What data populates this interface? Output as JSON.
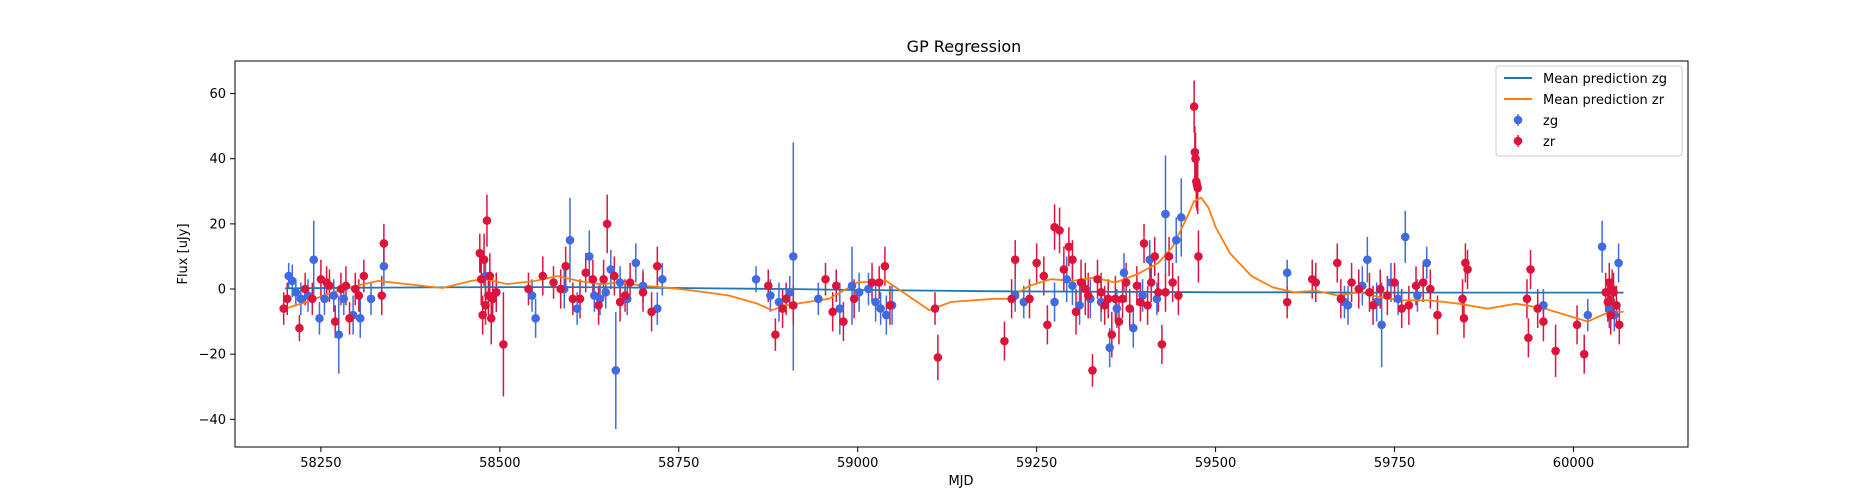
{
  "chart_data": {
    "type": "scatter",
    "title": "GP Regression",
    "xlabel": "MJD",
    "ylabel": "Flux [uJy]",
    "xlim": [
      58130,
      60160
    ],
    "ylim": [
      -48.5,
      70
    ],
    "x_ticks": [
      58250,
      58500,
      58750,
      59000,
      59250,
      59500,
      59750,
      60000
    ],
    "y_ticks": [
      -40,
      -20,
      0,
      20,
      40,
      60
    ],
    "grid": false,
    "legend_position": "top-right",
    "legend": [
      "Mean prediction zg",
      "Mean prediction zr",
      "zg",
      "zr"
    ],
    "colors": {
      "zg_line": "#1f77b4",
      "zr_line": "#ff7f0e",
      "zg_points": "#4169e1",
      "zr_points": "#dc143c"
    },
    "mean_prediction_zg": {
      "x": [
        58200,
        58300,
        58400,
        58500,
        58600,
        58700,
        58800,
        58900,
        59000,
        59100,
        59200,
        59300,
        59400,
        59500,
        59600,
        59700,
        59800,
        59900,
        60000,
        60070
      ],
      "y": [
        0.2,
        0.4,
        0.5,
        0.6,
        0.6,
        0.4,
        0.2,
        0.0,
        -0.3,
        -0.5,
        -0.7,
        -0.8,
        -0.9,
        -1.0,
        -1.0,
        -1.1,
        -1.1,
        -1.1,
        -1.1,
        -1.1
      ]
    },
    "mean_prediction_zr": {
      "x": [
        58200,
        58230,
        58260,
        58290,
        58330,
        58370,
        58420,
        58460,
        58480,
        58510,
        58550,
        58580,
        58610,
        58640,
        58670,
        58700,
        58730,
        58770,
        58820,
        58860,
        58880,
        58900,
        58930,
        58960,
        59000,
        59040,
        59070,
        59100,
        59130,
        59160,
        59190,
        59210,
        59240,
        59270,
        59300,
        59330,
        59360,
        59390,
        59420,
        59440,
        59460,
        59470,
        59480,
        59490,
        59500,
        59520,
        59550,
        59580,
        59610,
        59640,
        59670,
        59700,
        59730,
        59760,
        59800,
        59840,
        59880,
        59920,
        59960,
        59990,
        60020,
        60050,
        60070
      ],
      "y": [
        -6,
        -4,
        -1.5,
        0.5,
        2.5,
        1.5,
        0.3,
        2.5,
        3,
        1.5,
        2.5,
        4,
        2.5,
        1.5,
        2,
        1,
        0.5,
        -0.5,
        -2,
        -4.5,
        -6.5,
        -5,
        -4,
        -3,
        2,
        2.5,
        -2,
        -6.5,
        -4,
        -3.5,
        -3,
        -3,
        1,
        3,
        2.5,
        3.5,
        2,
        4.5,
        8,
        13,
        22,
        27,
        28,
        25,
        19,
        11,
        4,
        0.5,
        -1,
        -0.5,
        -2,
        -1,
        -2.5,
        -3.5,
        -3.5,
        -4.5,
        -6,
        -4.5,
        -6,
        -8,
        -10,
        -7,
        -7
      ]
    },
    "series_zg": {
      "name": "zg",
      "x": [
        58205,
        58210,
        58215,
        58222,
        58232,
        58240,
        58248,
        58255,
        58268,
        58275,
        58282,
        58295,
        58305,
        58320,
        58338,
        58480,
        58495,
        58545,
        58550,
        58590,
        58598,
        58608,
        58625,
        58632,
        58640,
        58648,
        58655,
        58662,
        58668,
        58678,
        58690,
        58700,
        58720,
        58727,
        58858,
        58878,
        58890,
        58905,
        58910,
        58945,
        58975,
        58992,
        59002,
        59015,
        59025,
        59032,
        59040,
        59048,
        59220,
        59232,
        59275,
        59292,
        59300,
        59310,
        59325,
        59340,
        59352,
        59362,
        59372,
        59385,
        59398,
        59408,
        59418,
        59430,
        59445,
        59452,
        59600,
        59680,
        59685,
        59705,
        59712,
        59725,
        59732,
        59745,
        59755,
        59765,
        59782,
        59795,
        59958,
        60020,
        60040,
        60050,
        60057,
        60063
      ],
      "y": [
        4,
        2.5,
        -1,
        -3,
        -2,
        9,
        -9,
        -3,
        -2,
        -14,
        -3,
        -8,
        -9,
        -3,
        7,
        4,
        -1,
        -2,
        -9,
        0,
        15,
        -6,
        10,
        -2,
        -3,
        -1,
        6,
        -25,
        2,
        -3,
        8,
        1,
        -6,
        3,
        3,
        -2,
        -4,
        -1,
        10,
        -3,
        -6,
        1,
        -1,
        0,
        -4,
        -6,
        -8,
        -5,
        -2,
        -4,
        -4,
        3,
        1,
        -5,
        -3,
        -4,
        -18,
        -6,
        5,
        -12,
        -2,
        9,
        -3,
        23,
        15,
        22,
        5,
        -4,
        -5,
        1,
        9,
        -4,
        -11,
        2,
        -3,
        16,
        -2,
        8,
        -5,
        -8,
        13,
        -6,
        -8,
        8
      ],
      "err": [
        4,
        5,
        4,
        5,
        5,
        12,
        5,
        5,
        5,
        12,
        5,
        6,
        6,
        5,
        6,
        6,
        6,
        5,
        6,
        6,
        13,
        5,
        8,
        5,
        5,
        5,
        6,
        18,
        5,
        5,
        6,
        5,
        5,
        5,
        4,
        5,
        6,
        5,
        35,
        5,
        8,
        12,
        6,
        5,
        6,
        5,
        6,
        6,
        5,
        5,
        6,
        7,
        6,
        6,
        6,
        6,
        6,
        6,
        6,
        6,
        5,
        6,
        5,
        18,
        7,
        12,
        4,
        5,
        6,
        6,
        7,
        6,
        13,
        6,
        5,
        8,
        5,
        5,
        5,
        5,
        8,
        6,
        5,
        6
      ]
    },
    "series_zr": {
      "name": "zr",
      "x": [
        58198,
        58203,
        58220,
        58228,
        58238,
        58250,
        58258,
        58262,
        58270,
        58278,
        58285,
        58290,
        58298,
        58303,
        58310,
        58335,
        58338,
        58472,
        58474,
        58476,
        58478,
        58480,
        58482,
        58484,
        58486,
        58488,
        58490,
        58495,
        58505,
        58540,
        58560,
        58575,
        58585,
        58592,
        58602,
        58612,
        58620,
        58630,
        58638,
        58645,
        58650,
        58660,
        58668,
        58675,
        58682,
        58700,
        58712,
        58720,
        58875,
        58885,
        58895,
        58900,
        58910,
        58955,
        58965,
        58970,
        58980,
        58995,
        59020,
        59030,
        59038,
        59045,
        59108,
        59112,
        59205,
        59215,
        59220,
        59240,
        59250,
        59260,
        59265,
        59275,
        59282,
        59288,
        59295,
        59300,
        59305,
        59312,
        59318,
        59322,
        59328,
        59335,
        59340,
        59345,
        59350,
        59355,
        59360,
        59365,
        59370,
        59375,
        59380,
        59390,
        59395,
        59400,
        59405,
        59410,
        59415,
        59420,
        59425,
        59430,
        59435,
        59440,
        59448,
        59470,
        59471,
        59472,
        59473,
        59474,
        59475,
        59476,
        59600,
        59635,
        59640,
        59670,
        59675,
        59690,
        59700,
        59715,
        59720,
        59730,
        59740,
        59750,
        59760,
        59770,
        59780,
        59790,
        59800,
        59810,
        59845,
        59847,
        59849,
        59852,
        59935,
        59937,
        59940,
        59950,
        59958,
        59975,
        60005,
        60015,
        60045,
        60048,
        60050,
        60052,
        60054,
        60056,
        60060,
        60064
      ],
      "y": [
        -6,
        -3,
        -12,
        0,
        -3,
        3,
        2,
        1,
        -10,
        0,
        1,
        -9,
        0,
        -2,
        4,
        -2,
        14,
        11,
        3,
        -8,
        9,
        -5,
        21,
        -2,
        4,
        -9,
        -3,
        -1,
        -17,
        0,
        4,
        2,
        0,
        7,
        -3,
        -3,
        5,
        3,
        -5,
        3,
        20,
        4,
        -4,
        -2,
        2,
        -1,
        -7,
        7,
        1,
        -14,
        -6,
        -3,
        -5,
        3,
        -7,
        1,
        -10,
        -3,
        2,
        2,
        7,
        -5,
        -6,
        -21,
        -16,
        -3,
        9,
        -3,
        8,
        4,
        -11,
        19,
        18,
        6,
        13,
        9,
        -7,
        2,
        0,
        -2,
        -25,
        3,
        -1,
        -5,
        -3,
        -14,
        -3,
        -10,
        -3,
        2,
        -6,
        1,
        -4,
        14,
        -5,
        2,
        10,
        -1,
        -17,
        -1,
        10,
        2,
        -2,
        56,
        42,
        40,
        33,
        32,
        31,
        10,
        -4,
        3,
        2,
        8,
        -3,
        2,
        0,
        -1,
        -5,
        0,
        -2,
        2,
        -6,
        -5,
        1,
        2,
        0,
        -8,
        -3,
        -9,
        8,
        6,
        -3,
        -15,
        6,
        -6,
        -10,
        -19,
        -11,
        -20,
        -1,
        -4,
        2,
        -8,
        0,
        -1,
        -5,
        -11
      ],
      "err": [
        5,
        5,
        4,
        5,
        5,
        6,
        5,
        5,
        5,
        5,
        6,
        5,
        5,
        5,
        5,
        6,
        6,
        6,
        8,
        6,
        8,
        6,
        8,
        6,
        7,
        8,
        7,
        6,
        16,
        5,
        6,
        5,
        6,
        6,
        5,
        6,
        6,
        6,
        6,
        6,
        9,
        6,
        6,
        5,
        6,
        6,
        6,
        6,
        5,
        5,
        6,
        5,
        6,
        5,
        6,
        5,
        6,
        6,
        6,
        5,
        6,
        6,
        5,
        7,
        6,
        6,
        6,
        6,
        6,
        6,
        6,
        7,
        7,
        7,
        6,
        6,
        7,
        7,
        8,
        7,
        5,
        6,
        6,
        6,
        6,
        7,
        7,
        7,
        6,
        6,
        6,
        6,
        6,
        6,
        6,
        6,
        6,
        6,
        6,
        6,
        6,
        6,
        6,
        8,
        8,
        8,
        8,
        8,
        8,
        8,
        5,
        6,
        6,
        6,
        6,
        6,
        6,
        6,
        6,
        6,
        6,
        6,
        6,
        6,
        6,
        6,
        6,
        6,
        6,
        6,
        6,
        6,
        6,
        6,
        6,
        6,
        6,
        8,
        6,
        6,
        6,
        6,
        6,
        6,
        6,
        6,
        6,
        6
      ]
    }
  }
}
